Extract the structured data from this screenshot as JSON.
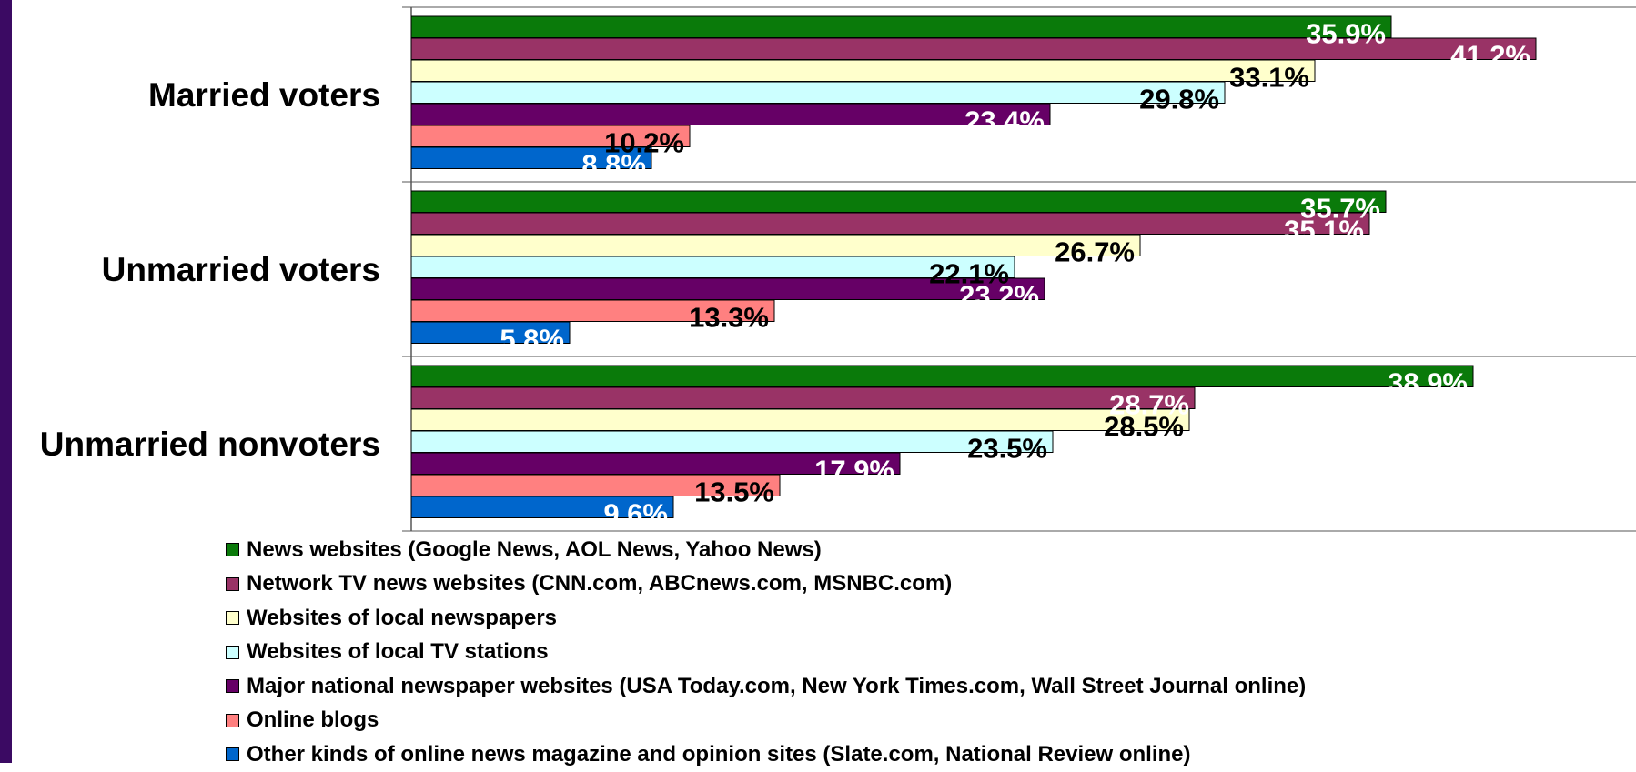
{
  "chart_data": {
    "type": "bar",
    "orientation": "horizontal",
    "title": "",
    "xlabel": "",
    "ylabel": "",
    "xlim": [
      0,
      45
    ],
    "grid": false,
    "legend_placement": "bottom",
    "categories": [
      "Married voters",
      "Unmarried voters",
      "Unmarried nonvoters"
    ],
    "series": [
      {
        "name": "News websites (Google News, AOL News, Yahoo News)",
        "color": "#0a7a0a",
        "label_color": "#ffffff",
        "values": [
          35.9,
          35.7,
          38.9
        ],
        "labels": [
          "35.9%",
          "35.7%",
          "38.9%"
        ]
      },
      {
        "name": "Network TV news websites (CNN.com, ABCnews.com, MSNBC.com)",
        "color": "#993366",
        "label_color": "#ffffff",
        "values": [
          41.2,
          35.1,
          28.7
        ],
        "labels": [
          "41.2%",
          "35.1%",
          "28.7%"
        ]
      },
      {
        "name": "Websites of local newspapers",
        "color": "#ffffcc",
        "label_color": "#000000",
        "values": [
          33.1,
          26.7,
          28.5
        ],
        "labels": [
          "33.1%",
          "26.7%",
          "28.5%"
        ]
      },
      {
        "name": "Websites of local TV stations",
        "color": "#ccffff",
        "label_color": "#000000",
        "values": [
          29.8,
          22.1,
          23.5
        ],
        "labels": [
          "29.8%",
          "22.1%",
          "23.5%"
        ]
      },
      {
        "name": "Major national newspaper websites (USA Today.com, New York Times.com, Wall Street Journal online)",
        "color": "#660066",
        "label_color": "#ffffff",
        "values": [
          23.4,
          23.2,
          17.9
        ],
        "labels": [
          "23.4%",
          "23.2%",
          "17.9%"
        ]
      },
      {
        "name": "Online blogs",
        "color": "#ff8080",
        "label_color": "#000000",
        "values": [
          10.2,
          13.3,
          13.5
        ],
        "labels": [
          "10.2%",
          "13.3%",
          "13.5%"
        ]
      },
      {
        "name": "Other kinds of online news magazine and opinion sites (Slate.com, National Review online)",
        "color": "#0066cc",
        "label_color": "#ffffff",
        "values": [
          8.8,
          5.8,
          9.6
        ],
        "labels": [
          "8.8%",
          "5.8%",
          "9.6%"
        ]
      }
    ]
  }
}
